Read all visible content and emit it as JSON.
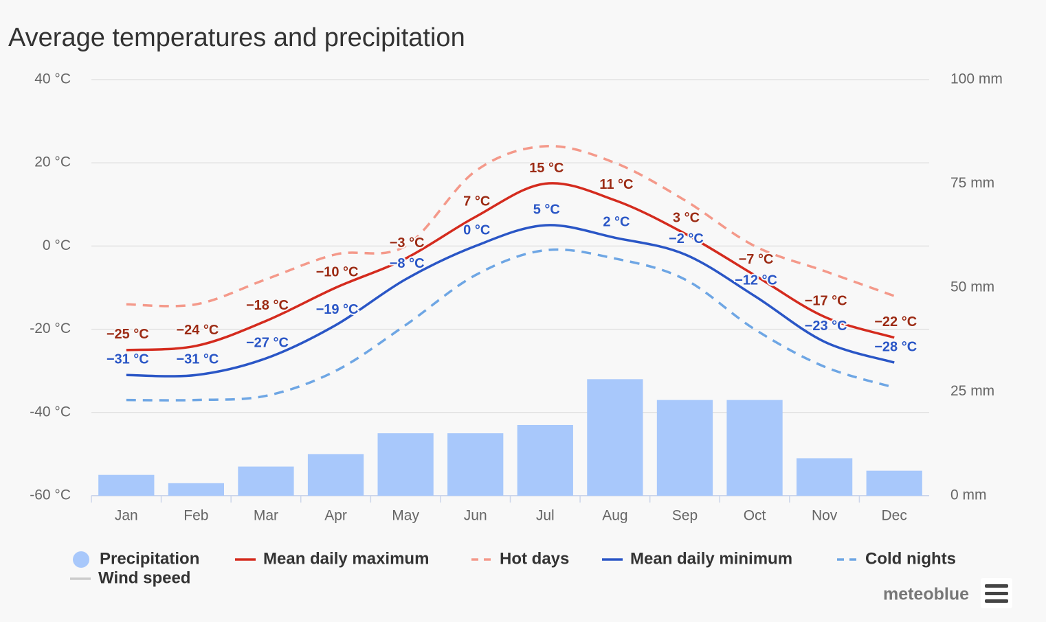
{
  "chart_data": {
    "type": "line",
    "title": "Average temperatures and precipitation",
    "categories": [
      "Jan",
      "Feb",
      "Mar",
      "Apr",
      "May",
      "Jun",
      "Jul",
      "Aug",
      "Sep",
      "Oct",
      "Nov",
      "Dec"
    ],
    "ylim": [
      -60,
      40
    ],
    "yticks": [
      {
        "value": -60,
        "label": "-60 °C"
      },
      {
        "value": -40,
        "label": "-40 °C"
      },
      {
        "value": -20,
        "label": "-20 °C"
      },
      {
        "value": 0,
        "label": "0 °C"
      },
      {
        "value": 20,
        "label": "20 °C"
      },
      {
        "value": 40,
        "label": "40 °C"
      }
    ],
    "y2lim": [
      0,
      100
    ],
    "y2ticks": [
      {
        "value": 0,
        "label": "0 mm"
      },
      {
        "value": 25,
        "label": "25 mm"
      },
      {
        "value": 50,
        "label": "50 mm"
      },
      {
        "value": 75,
        "label": "75 mm"
      },
      {
        "value": 100,
        "label": "100 mm"
      }
    ],
    "grid": true,
    "series": [
      {
        "name": "Precipitation",
        "type": "bar",
        "axis": "y2",
        "color": "#a8c8fb",
        "values": [
          5,
          3,
          7,
          10,
          15,
          15,
          17,
          28,
          23,
          23,
          9,
          6
        ]
      },
      {
        "name": "Mean daily maximum",
        "type": "line",
        "color": "#d42b1e",
        "label_color": "#9c2b14",
        "dash": false,
        "values": [
          -25,
          -24,
          -18,
          -10,
          -3,
          7,
          15,
          11,
          3,
          -7,
          -17,
          -22
        ],
        "value_labels": [
          "−25 °C",
          "−24 °C",
          "−18 °C",
          "−10 °C",
          "−3 °C",
          "7 °C",
          "15 °C",
          "11 °C",
          "3 °C",
          "−7 °C",
          "−17 °C",
          "−22 °C"
        ]
      },
      {
        "name": "Hot days",
        "type": "line",
        "color": "#f4998a",
        "dash": true,
        "values": [
          -14,
          -14,
          -8,
          -2,
          0,
          18,
          24,
          20,
          11,
          0,
          -6,
          -12
        ]
      },
      {
        "name": "Mean daily minimum",
        "type": "line",
        "color": "#2a56c6",
        "label_color": "#2a56c6",
        "dash": false,
        "values": [
          -31,
          -31,
          -27,
          -19,
          -8,
          0,
          5,
          2,
          -2,
          -12,
          -23,
          -28
        ],
        "value_labels": [
          "−31 °C",
          "−31 °C",
          "−27 °C",
          "−19 °C",
          "−8 °C",
          "0 °C",
          "5 °C",
          "2 °C",
          "−2 °C",
          "−12 °C",
          "−23 °C",
          "−28 °C"
        ]
      },
      {
        "name": "Cold nights",
        "type": "line",
        "color": "#6ea6e4",
        "dash": true,
        "values": [
          -37,
          -37,
          -36,
          -30,
          -19,
          -7,
          -1,
          -3,
          -8,
          -20,
          -29,
          -34
        ]
      },
      {
        "name": "Wind speed",
        "type": "line",
        "color": "#cccccc",
        "visible": false,
        "values": [
          null,
          null,
          null,
          null,
          null,
          null,
          null,
          null,
          null,
          null,
          null,
          null
        ]
      }
    ],
    "credit": "meteoblue"
  }
}
